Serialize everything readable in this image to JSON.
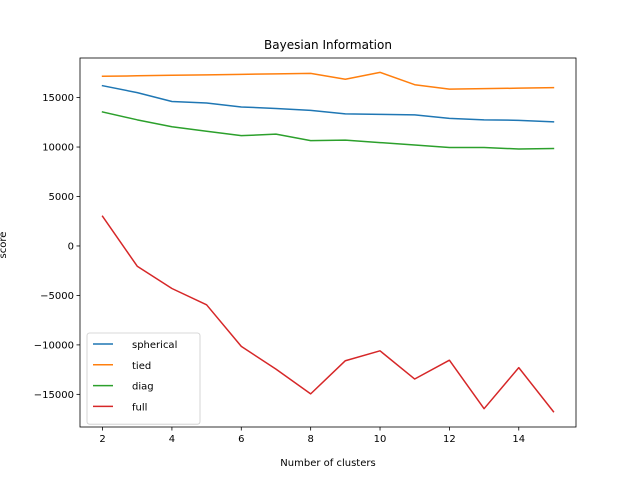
{
  "chart_data": {
    "type": "line",
    "title": "Bayesian Information",
    "xlabel": "Number of clusters",
    "ylabel": "score",
    "xlim": [
      1.35,
      15.65
    ],
    "ylim": [
      -18300,
      19000
    ],
    "xticks": [
      2,
      4,
      6,
      8,
      10,
      12,
      14
    ],
    "yticks": [
      -15000,
      -10000,
      -5000,
      0,
      5000,
      10000,
      15000
    ],
    "grid": false,
    "legend_position": "lower-left",
    "x": [
      2,
      3,
      4,
      5,
      6,
      7,
      8,
      9,
      10,
      11,
      12,
      13,
      14,
      15
    ],
    "series": [
      {
        "name": "spherical",
        "color": "#1f77b4",
        "values": [
          16200,
          15500,
          14600,
          14450,
          14050,
          13900,
          13700,
          13350,
          13300,
          13250,
          12900,
          12750,
          12700,
          12550
        ]
      },
      {
        "name": "tied",
        "color": "#ff7f0e",
        "values": [
          17150,
          17200,
          17250,
          17300,
          17350,
          17400,
          17450,
          16850,
          17550,
          16300,
          15850,
          15900,
          15950,
          16000
        ]
      },
      {
        "name": "diag",
        "color": "#2ca02c",
        "values": [
          13550,
          12750,
          12050,
          11600,
          11150,
          11300,
          10650,
          10700,
          10450,
          10200,
          9950,
          9950,
          9800,
          9850
        ]
      },
      {
        "name": "full",
        "color": "#d62728",
        "values": [
          3000,
          -2050,
          -4300,
          -5950,
          -10150,
          -12450,
          -14950,
          -11600,
          -10600,
          -13450,
          -11550,
          -16450,
          -12300,
          -16750
        ]
      }
    ]
  }
}
